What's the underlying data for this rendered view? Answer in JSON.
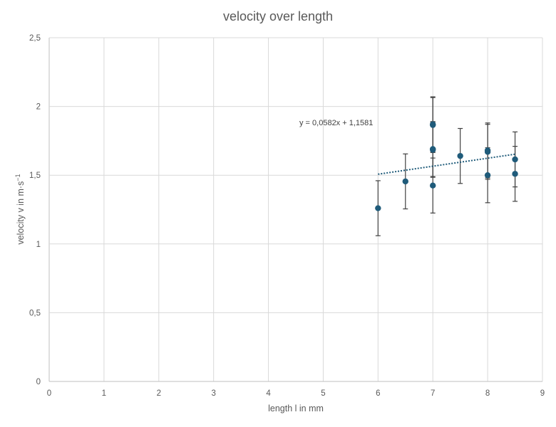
{
  "chart_data": {
    "type": "scatter",
    "title": "velocity over length",
    "xlabel": "length l in mm",
    "ylabel_main": "velocity v in m·s",
    "ylabel_sup": "−1",
    "xlim": [
      0,
      9
    ],
    "ylim": [
      0,
      2.5
    ],
    "x_ticks": [
      0,
      1,
      2,
      3,
      4,
      5,
      6,
      7,
      8,
      9
    ],
    "x_tick_labels": [
      "0",
      "1",
      "2",
      "3",
      "4",
      "5",
      "6",
      "7",
      "8",
      "9"
    ],
    "y_ticks": [
      0,
      0.5,
      1,
      1.5,
      2,
      2.5
    ],
    "y_tick_labels": [
      "0",
      "0,5",
      "1",
      "1,5",
      "2",
      "2,5"
    ],
    "grid": true,
    "legend": "none",
    "marker_color": "#1f5b7a",
    "error_bar_color": "#404040",
    "points": [
      {
        "x": 6,
        "y": 1.26,
        "err": 0.2
      },
      {
        "x": 6.5,
        "y": 1.455,
        "err": 0.2
      },
      {
        "x": 7,
        "y": 1.87,
        "err": 0.2
      },
      {
        "x": 7,
        "y": 1.865,
        "err": 0.2
      },
      {
        "x": 7,
        "y": 1.69,
        "err": 0.2
      },
      {
        "x": 7,
        "y": 1.685,
        "err": 0.2
      },
      {
        "x": 7,
        "y": 1.425,
        "err": 0.2
      },
      {
        "x": 7.5,
        "y": 1.64,
        "err": 0.2
      },
      {
        "x": 8,
        "y": 1.68,
        "err": 0.2
      },
      {
        "x": 8,
        "y": 1.67,
        "err": 0.2
      },
      {
        "x": 8,
        "y": 1.5,
        "err": 0.2
      },
      {
        "x": 8.5,
        "y": 1.615,
        "err": 0.2
      },
      {
        "x": 8.5,
        "y": 1.51,
        "err": 0.2
      }
    ],
    "trendline": {
      "type": "linear",
      "slope": 0.0582,
      "intercept": 1.1581,
      "x_range": [
        6,
        8.5
      ],
      "color": "#1f5b7a",
      "equation_label": "y = 0,0582x + 1,1581"
    }
  }
}
